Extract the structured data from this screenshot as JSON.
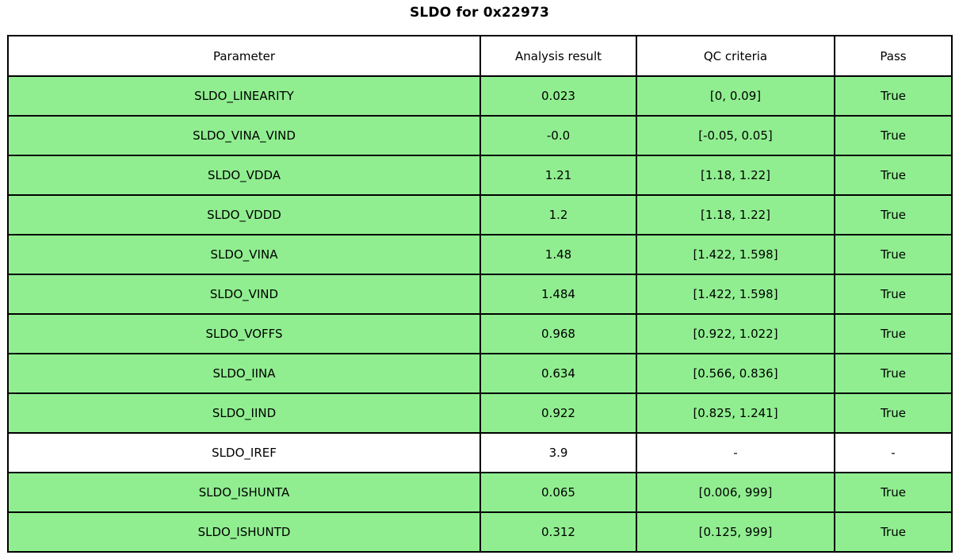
{
  "title": "SLDO for 0x22973",
  "colors": {
    "pass_row": "#90EE90",
    "neutral_row": "#FFFFFF",
    "border": "#000000",
    "header_bg": "#FFFFFF",
    "text": "#000000"
  },
  "table": {
    "columns": [
      "Parameter",
      "Analysis result",
      "QC criteria",
      "Pass"
    ],
    "rows": [
      {
        "parameter": "SLDO_LINEARITY",
        "result": "0.023",
        "criteria": "[0, 0.09]",
        "pass": "True",
        "status": "pass"
      },
      {
        "parameter": "SLDO_VINA_VIND",
        "result": "-0.0",
        "criteria": "[-0.05, 0.05]",
        "pass": "True",
        "status": "pass"
      },
      {
        "parameter": "SLDO_VDDA",
        "result": "1.21",
        "criteria": "[1.18, 1.22]",
        "pass": "True",
        "status": "pass"
      },
      {
        "parameter": "SLDO_VDDD",
        "result": "1.2",
        "criteria": "[1.18, 1.22]",
        "pass": "True",
        "status": "pass"
      },
      {
        "parameter": "SLDO_VINA",
        "result": "1.48",
        "criteria": "[1.422, 1.598]",
        "pass": "True",
        "status": "pass"
      },
      {
        "parameter": "SLDO_VIND",
        "result": "1.484",
        "criteria": "[1.422, 1.598]",
        "pass": "True",
        "status": "pass"
      },
      {
        "parameter": "SLDO_VOFFS",
        "result": "0.968",
        "criteria": "[0.922, 1.022]",
        "pass": "True",
        "status": "pass"
      },
      {
        "parameter": "SLDO_IINA",
        "result": "0.634",
        "criteria": "[0.566, 0.836]",
        "pass": "True",
        "status": "pass"
      },
      {
        "parameter": "SLDO_IIND",
        "result": "0.922",
        "criteria": "[0.825, 1.241]",
        "pass": "True",
        "status": "pass"
      },
      {
        "parameter": "SLDO_IREF",
        "result": "3.9",
        "criteria": "-",
        "pass": "-",
        "status": "neutral"
      },
      {
        "parameter": "SLDO_ISHUNTA",
        "result": "0.065",
        "criteria": "[0.006, 999]",
        "pass": "True",
        "status": "pass"
      },
      {
        "parameter": "SLDO_ISHUNTD",
        "result": "0.312",
        "criteria": "[0.125, 999]",
        "pass": "True",
        "status": "pass"
      }
    ]
  },
  "chart_data": {
    "type": "table",
    "title": "SLDO for 0x22973",
    "columns": [
      "Parameter",
      "Analysis result",
      "QC criteria",
      "Pass"
    ],
    "rows": [
      [
        "SLDO_LINEARITY",
        "0.023",
        "[0, 0.09]",
        "True"
      ],
      [
        "SLDO_VINA_VIND",
        "-0.0",
        "[-0.05, 0.05]",
        "True"
      ],
      [
        "SLDO_VDDA",
        "1.21",
        "[1.18, 1.22]",
        "True"
      ],
      [
        "SLDO_VDDD",
        "1.2",
        "[1.18, 1.22]",
        "True"
      ],
      [
        "SLDO_VINA",
        "1.48",
        "[1.422, 1.598]",
        "True"
      ],
      [
        "SLDO_VIND",
        "1.484",
        "[1.422, 1.598]",
        "True"
      ],
      [
        "SLDO_VOFFS",
        "0.968",
        "[0.922, 1.022]",
        "True"
      ],
      [
        "SLDO_IINA",
        "0.634",
        "[0.566, 0.836]",
        "True"
      ],
      [
        "SLDO_IIND",
        "0.922",
        "[0.825, 1.241]",
        "True"
      ],
      [
        "SLDO_IREF",
        "3.9",
        "-",
        "-"
      ],
      [
        "SLDO_ISHUNTA",
        "0.065",
        "[0.006, 999]",
        "True"
      ],
      [
        "SLDO_ISHUNTD",
        "0.312",
        "[0.125, 999]",
        "True"
      ]
    ],
    "layout_hints": {
      "highlight": "rows with Pass=True are light green (#90EE90); SLDO_IREF row is white",
      "grid": "on",
      "legend": "none"
    }
  }
}
